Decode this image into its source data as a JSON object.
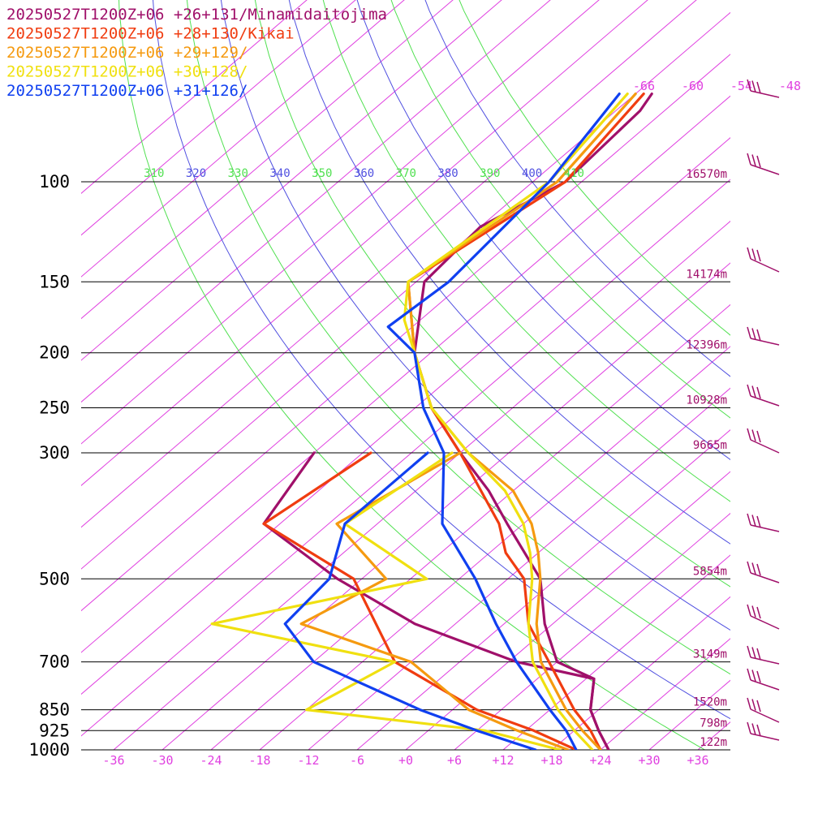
{
  "chart_data": {
    "type": "line",
    "title": "",
    "legend": [
      {
        "text": "20250527T1200Z+06 +26+131/Minamidaitojima",
        "color": "#a0106a"
      },
      {
        "text": "20250527T1200Z+06 +28+130/Kikai",
        "color": "#f03c10"
      },
      {
        "text": "20250527T1200Z+06 +29+129/",
        "color": "#f59a10"
      },
      {
        "text": "20250527T1200Z+06 +30+128/",
        "color": "#f0e010"
      },
      {
        "text": "20250527T1200Z+06 +31+126/",
        "color": "#1040f0"
      }
    ],
    "pressure_levels": [
      {
        "label": "100",
        "p": 100,
        "height": "16570m"
      },
      {
        "label": "150",
        "p": 150,
        "height": "14174m"
      },
      {
        "label": "200",
        "p": 200,
        "height": "12396m"
      },
      {
        "label": "250",
        "p": 250,
        "height": "10928m"
      },
      {
        "label": "300",
        "p": 300,
        "height": "9665m"
      },
      {
        "label": "500",
        "p": 500,
        "height": "5854m"
      },
      {
        "label": "700",
        "p": 700,
        "height": "3149m"
      },
      {
        "label": "850",
        "p": 850,
        "height": "1520m"
      },
      {
        "label": "925",
        "p": 925,
        "height": "798m"
      },
      {
        "label": "1000",
        "p": 1000,
        "height": "122m"
      }
    ],
    "x_ticks": [
      {
        "label": "-36",
        "t": -36
      },
      {
        "label": "-30",
        "t": -30
      },
      {
        "label": "-24",
        "t": -24
      },
      {
        "label": "-18",
        "t": -18
      },
      {
        "label": "-12",
        "t": -12
      },
      {
        "label": "-6",
        "t": -6
      },
      {
        "label": "+0",
        "t": 0
      },
      {
        "label": "+6",
        "t": 6
      },
      {
        "label": "+12",
        "t": 12
      },
      {
        "label": "+18",
        "t": 18
      },
      {
        "label": "+24",
        "t": 24
      },
      {
        "label": "+30",
        "t": 30
      },
      {
        "label": "+36",
        "t": 36
      }
    ],
    "xlim": [
      -40,
      40
    ],
    "p_range": [
      100,
      1000
    ],
    "upper_temp_labels": [
      {
        "label": "-66",
        "t": -66
      },
      {
        "label": "-60",
        "t": -60
      },
      {
        "label": "-54",
        "t": -54
      },
      {
        "label": "-48",
        "t": -48
      }
    ],
    "theta_lines": [
      {
        "label": "310",
        "theta": 310,
        "color": "#50e050"
      },
      {
        "label": "320",
        "theta": 320,
        "color": "#5050e0"
      },
      {
        "label": "330",
        "theta": 330,
        "color": "#50e050"
      },
      {
        "label": "340",
        "theta": 340,
        "color": "#5050e0"
      },
      {
        "label": "350",
        "theta": 350,
        "color": "#50e050"
      },
      {
        "label": "360",
        "theta": 360,
        "color": "#5050e0"
      },
      {
        "label": "370",
        "theta": 370,
        "color": "#50e050"
      },
      {
        "label": "380",
        "theta": 380,
        "color": "#5050e0"
      },
      {
        "label": "390",
        "theta": 390,
        "color": "#50e050"
      },
      {
        "label": "400",
        "theta": 400,
        "color": "#5050e0"
      },
      {
        "label": "410",
        "theta": 410,
        "color": "#50e050"
      }
    ],
    "series": [
      {
        "name": "Minamidaitojima",
        "color": "#a0106a",
        "kind": "temperature",
        "points": [
          [
            70,
            -64
          ],
          [
            75,
            -63
          ],
          [
            100,
            -62
          ],
          [
            120,
            -66
          ],
          [
            150,
            -65
          ],
          [
            200,
            -56
          ],
          [
            250,
            -46
          ],
          [
            300,
            -36
          ],
          [
            350,
            -27
          ],
          [
            400,
            -20
          ],
          [
            500,
            -8
          ],
          [
            600,
            -1
          ],
          [
            700,
            6
          ],
          [
            750,
            13
          ],
          [
            850,
            17
          ],
          [
            925,
            21
          ],
          [
            1000,
            25
          ]
        ]
      },
      {
        "name": "Minamidaitojima",
        "color": "#a0106a",
        "kind": "dewpoint",
        "points": [
          [
            300,
            -54
          ],
          [
            400,
            -50
          ],
          [
            500,
            -33
          ],
          [
            600,
            -17
          ],
          [
            700,
            1
          ],
          [
            750,
            13
          ],
          [
            850,
            17
          ],
          [
            925,
            21
          ],
          [
            1000,
            25
          ]
        ]
      },
      {
        "name": "Kikai",
        "color": "#f03c10",
        "kind": "temperature",
        "points": [
          [
            70,
            -65
          ],
          [
            100,
            -62
          ],
          [
            150,
            -67
          ],
          [
            200,
            -56
          ],
          [
            250,
            -46
          ],
          [
            300,
            -36
          ],
          [
            400,
            -21
          ],
          [
            450,
            -16
          ],
          [
            500,
            -10
          ],
          [
            600,
            -3
          ],
          [
            700,
            5
          ],
          [
            850,
            15
          ],
          [
            925,
            20
          ],
          [
            1000,
            24
          ]
        ]
      },
      {
        "name": "Kikai",
        "color": "#f03c10",
        "kind": "dewpoint",
        "points": [
          [
            300,
            -47
          ],
          [
            400,
            -50
          ],
          [
            500,
            -31
          ],
          [
            700,
            -14
          ],
          [
            850,
            3
          ],
          [
            925,
            13
          ],
          [
            1000,
            21
          ]
        ]
      },
      {
        "name": "+29+129",
        "color": "#f59a10",
        "kind": "temperature",
        "points": [
          [
            70,
            -66
          ],
          [
            100,
            -63
          ],
          [
            150,
            -67
          ],
          [
            200,
            -56
          ],
          [
            250,
            -46
          ],
          [
            300,
            -35
          ],
          [
            350,
            -24
          ],
          [
            400,
            -17
          ],
          [
            450,
            -12
          ],
          [
            500,
            -8
          ],
          [
            600,
            -2
          ],
          [
            700,
            4
          ],
          [
            850,
            14
          ],
          [
            925,
            19
          ],
          [
            1000,
            24
          ]
        ]
      },
      {
        "name": "+29+129",
        "color": "#f59a10",
        "kind": "dewpoint",
        "points": [
          [
            300,
            -36
          ],
          [
            400,
            -41
          ],
          [
            500,
            -27
          ],
          [
            600,
            -31
          ],
          [
            700,
            -12
          ],
          [
            850,
            2
          ],
          [
            925,
            11
          ],
          [
            1000,
            20
          ]
        ]
      },
      {
        "name": "+30+128",
        "color": "#f0e010",
        "kind": "temperature",
        "points": [
          [
            70,
            -67
          ],
          [
            100,
            -64
          ],
          [
            150,
            -67
          ],
          [
            175,
            -62
          ],
          [
            200,
            -56
          ],
          [
            250,
            -46
          ],
          [
            300,
            -35
          ],
          [
            350,
            -25
          ],
          [
            400,
            -18
          ],
          [
            450,
            -13
          ],
          [
            500,
            -9
          ],
          [
            600,
            -3
          ],
          [
            700,
            3
          ],
          [
            850,
            13
          ],
          [
            925,
            18
          ],
          [
            1000,
            23
          ]
        ]
      },
      {
        "name": "+30+128",
        "color": "#f0e010",
        "kind": "dewpoint",
        "points": [
          [
            300,
            -37
          ],
          [
            400,
            -40
          ],
          [
            500,
            -22
          ],
          [
            600,
            -42
          ],
          [
            700,
            -14
          ],
          [
            850,
            -18
          ],
          [
            925,
            7
          ],
          [
            1000,
            19
          ]
        ]
      },
      {
        "name": "+31+126",
        "color": "#1040f0",
        "kind": "temperature",
        "points": [
          [
            70,
            -68
          ],
          [
            100,
            -64
          ],
          [
            150,
            -62
          ],
          [
            180,
            -63
          ],
          [
            200,
            -56
          ],
          [
            250,
            -47
          ],
          [
            300,
            -38
          ],
          [
            400,
            -28
          ],
          [
            500,
            -16
          ],
          [
            600,
            -7
          ],
          [
            700,
            1
          ],
          [
            850,
            12
          ],
          [
            925,
            17
          ],
          [
            1000,
            21
          ]
        ]
      },
      {
        "name": "+31+126",
        "color": "#1040f0",
        "kind": "dewpoint",
        "points": [
          [
            300,
            -40
          ],
          [
            400,
            -40
          ],
          [
            500,
            -34
          ],
          [
            600,
            -33
          ],
          [
            700,
            -24
          ],
          [
            850,
            -4
          ],
          [
            925,
            6
          ],
          [
            1000,
            16
          ]
        ]
      }
    ]
  }
}
